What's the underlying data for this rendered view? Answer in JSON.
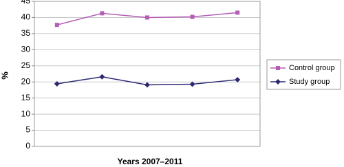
{
  "chart_data": {
    "type": "line",
    "x_label": "Years 2007–2011",
    "y_label": "%",
    "categories": [
      null,
      null,
      null,
      null,
      null
    ],
    "series": [
      {
        "name": "Control group",
        "color": "#b35db5",
        "marker": "square",
        "values": [
          37.7,
          41.3,
          40.0,
          40.2,
          41.5
        ]
      },
      {
        "name": "Study group",
        "color": "#2b2870",
        "marker": "diamond",
        "values": [
          19.4,
          21.6,
          19.1,
          19.3,
          20.7
        ]
      }
    ],
    "ylim": [
      0,
      45
    ],
    "yticks": [
      0,
      5,
      10,
      15,
      20,
      25,
      30,
      35,
      40,
      45
    ],
    "grid": true
  }
}
